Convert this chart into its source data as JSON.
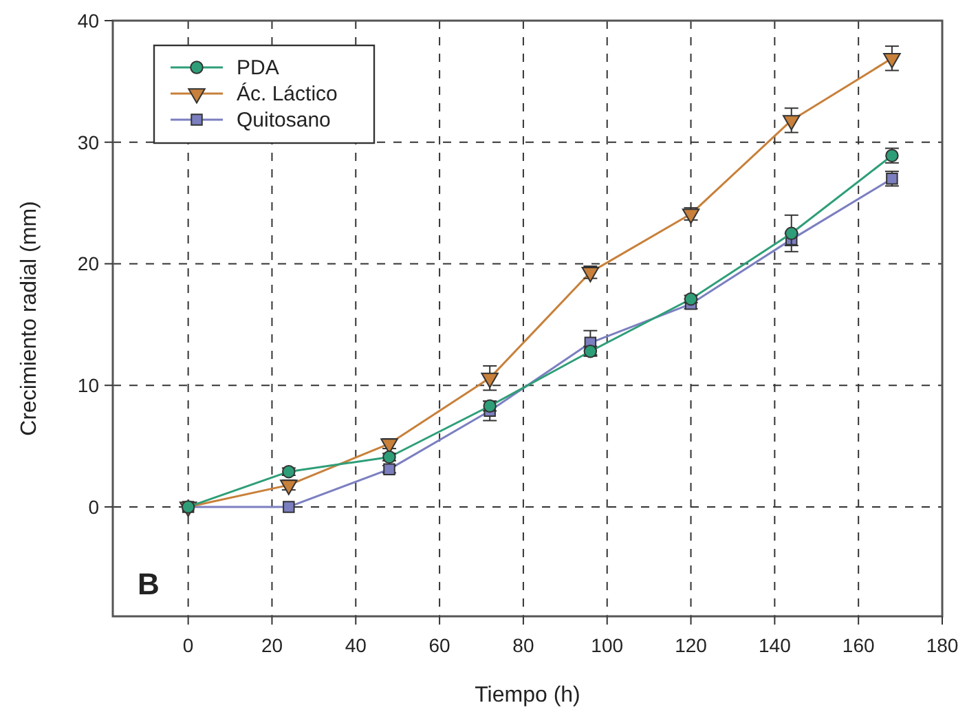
{
  "chart_data": {
    "type": "line",
    "xlabel": "Tiempo (h)",
    "ylabel": "Crecimiento radial (mm)",
    "x": [
      0,
      24,
      48,
      72,
      96,
      120,
      144,
      168
    ],
    "xlim": [
      -18,
      180
    ],
    "xticks": [
      0,
      20,
      40,
      60,
      80,
      100,
      120,
      140,
      160,
      180
    ],
    "ylim": [
      -9,
      40
    ],
    "yticks": [
      0,
      10,
      20,
      30,
      40
    ],
    "grid": true,
    "legend": "top left",
    "annotations": [
      "B"
    ],
    "series": [
      {
        "name": "PDA",
        "color": "#2e9e78",
        "marker": "circle",
        "values": [
          0,
          2.9,
          4.1,
          8.3,
          12.8,
          17.1,
          22.5,
          28.9
        ],
        "errors": [
          null,
          0.3,
          0.3,
          0.4,
          0.4,
          0.3,
          1.5,
          0.6
        ]
      },
      {
        "name": "Ác. Láctico",
        "color": "#c8803a",
        "marker": "triangle",
        "values": [
          0,
          1.8,
          5.2,
          10.6,
          19.3,
          24.1,
          31.8,
          36.9
        ],
        "errors": [
          null,
          0.4,
          0.4,
          1.0,
          0.5,
          0.5,
          1.0,
          1.0
        ]
      },
      {
        "name": "Quitosano",
        "color": "#7b7fc0",
        "marker": "square",
        "values": [
          0,
          0,
          3.1,
          7.9,
          13.5,
          16.7,
          22,
          27
        ],
        "errors": [
          null,
          null,
          0.3,
          0.8,
          1.0,
          0.4,
          0.5,
          0.6
        ]
      }
    ]
  }
}
